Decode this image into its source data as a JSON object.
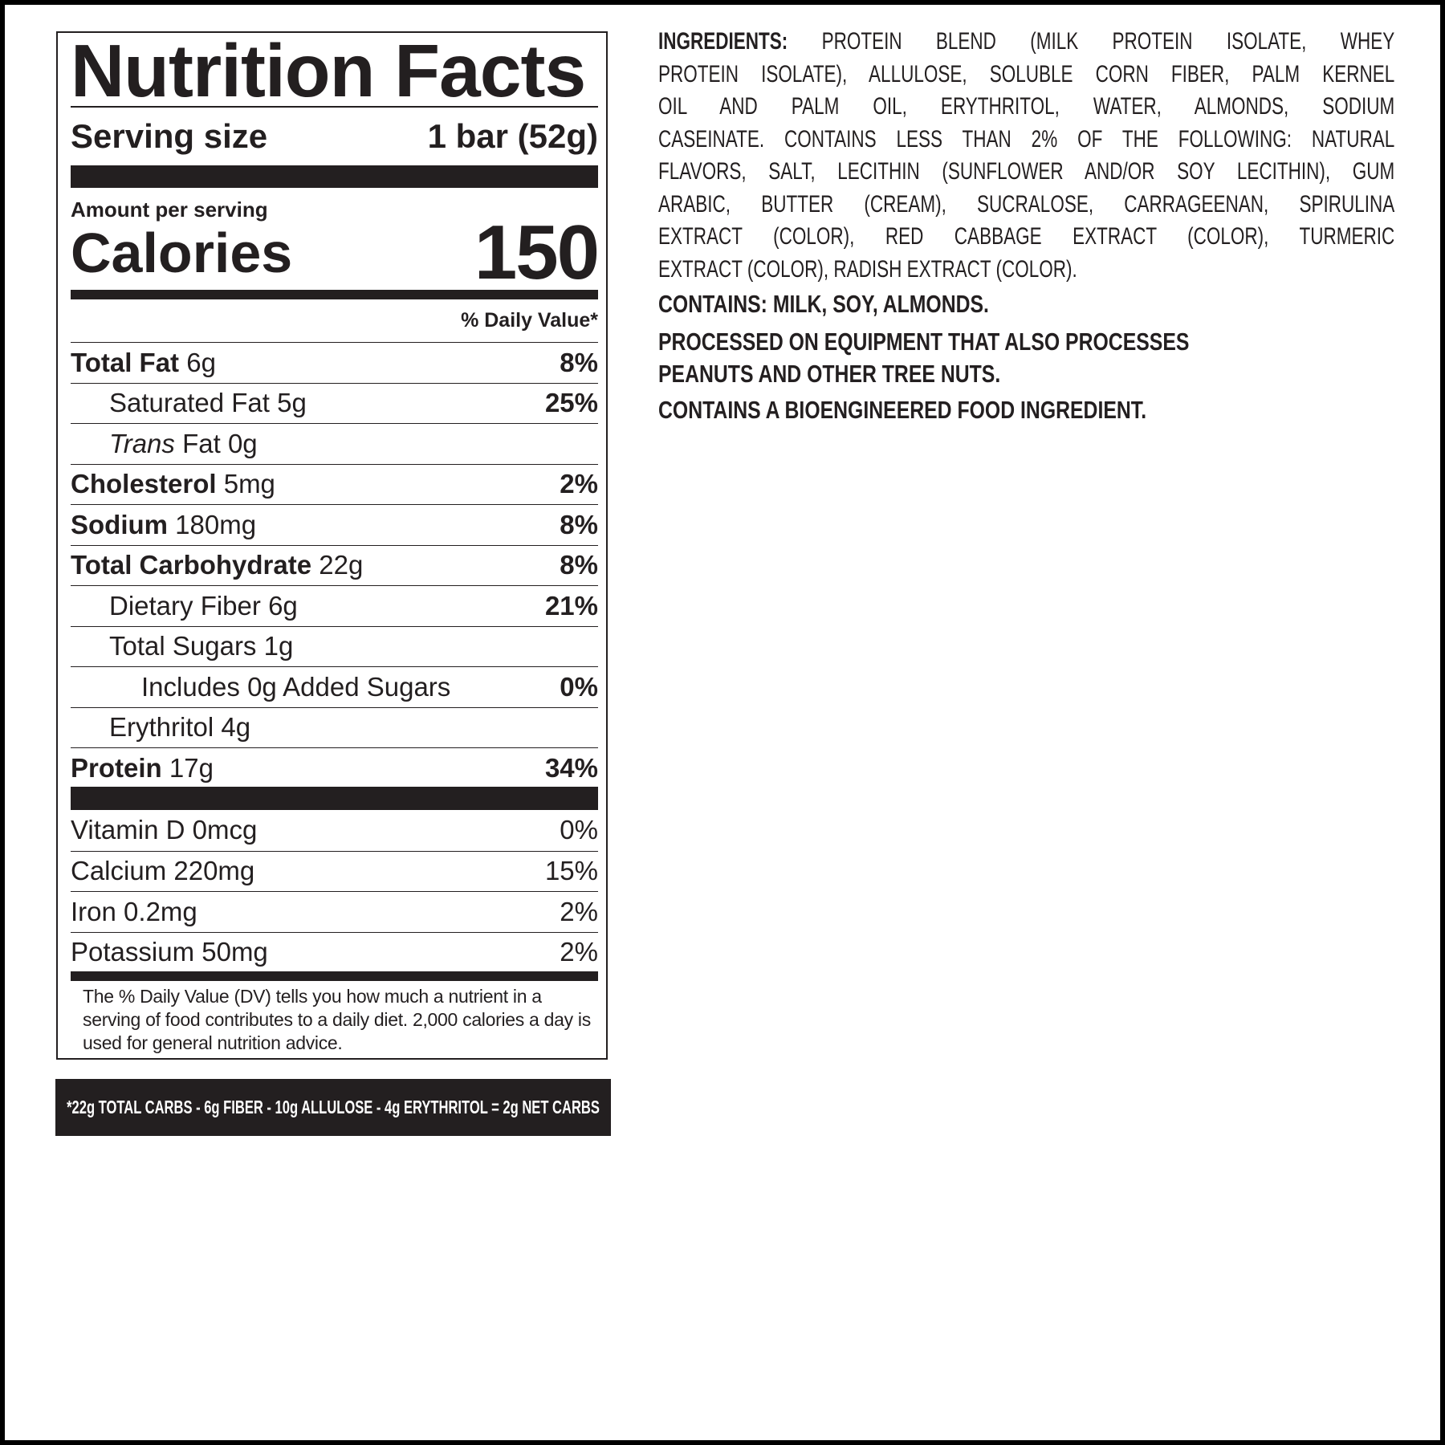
{
  "nutrition_facts": {
    "title": "Nutrition Facts",
    "serving_size_label": "Serving size",
    "serving_size_value": "1 bar (52g)",
    "amount_per_serving": "Amount per serving",
    "calories_label": "Calories",
    "calories_value": "150",
    "daily_value_header": "% Daily Value*",
    "nutrients": [
      {
        "name": "Total Fat",
        "amount": "6g",
        "dv": "8%",
        "bold": true,
        "indent": 0
      },
      {
        "name": "Saturated Fat",
        "amount": "5g",
        "dv": "25%",
        "bold": false,
        "indent": 1
      },
      {
        "name": "Trans",
        "name_suffix": "Fat",
        "amount": "0g",
        "dv": "",
        "bold": false,
        "indent": 1
      },
      {
        "name": "Cholesterol",
        "amount": "5mg",
        "dv": "2%",
        "bold": true,
        "indent": 0
      },
      {
        "name": "Sodium",
        "amount": "180mg",
        "dv": "8%",
        "bold": true,
        "indent": 0
      },
      {
        "name": "Total Carbohydrate",
        "amount": "22g",
        "dv": "8%",
        "bold": true,
        "indent": 0
      },
      {
        "name": "Dietary Fiber",
        "amount": "6g",
        "dv": "21%",
        "bold": false,
        "indent": 1
      },
      {
        "name": "Total Sugars",
        "amount": "1g",
        "dv": "",
        "bold": false,
        "indent": 1
      },
      {
        "name": "Includes 0g Added Sugars",
        "amount": "",
        "dv": "0%",
        "bold": false,
        "indent": 2
      },
      {
        "name": "Erythritol",
        "amount": "4g",
        "dv": "",
        "bold": false,
        "indent": 1
      },
      {
        "name": "Protein",
        "amount": "17g",
        "dv": "34%",
        "bold": true,
        "indent": 0
      }
    ],
    "vitamins": [
      {
        "name": "Vitamin D",
        "amount": "0mcg",
        "dv": "0%"
      },
      {
        "name": "Calcium",
        "amount": "220mg",
        "dv": "15%"
      },
      {
        "name": "Iron",
        "amount": "0.2mg",
        "dv": "2%"
      },
      {
        "name": "Potassium",
        "amount": "50mg",
        "dv": "2%"
      }
    ],
    "footnote": "The % Daily Value (DV) tells you how much a nutrient in a serving of food contributes to a daily diet. 2,000 calories a day is used for general nutrition advice."
  },
  "net_carbs_banner": "*22g TOTAL CARBS - 6g FIBER - 10g ALLULOSE - 4g ERYTHRITOL = 2g NET CARBS",
  "ingredients": {
    "label": "INGREDIENTS:",
    "lines": [
      "PROTEIN BLEND (MILK PROTEIN ISOLATE, WHEY",
      "PROTEIN ISOLATE), ALLULOSE, SOLUBLE CORN FIBER, PALM KERNEL",
      "OIL AND PALM OIL, ERYTHRITOL, WATER, ALMONDS, SODIUM",
      "CASEINATE. CONTAINS LESS THAN 2% OF THE FOLLOWING: NATURAL",
      "FLAVORS, SALT, LECITHIN (SUNFLOWER AND/OR SOY LECITHIN), GUM",
      "ARABIC, BUTTER (CREAM), SUCRALOSE, CARRAGEENAN, SPIRULINA",
      "EXTRACT (COLOR), RED CABBAGE EXTRACT (COLOR), TURMERIC",
      "EXTRACT (COLOR), RADISH EXTRACT (COLOR)."
    ],
    "contains": "CONTAINS: MILK, SOY, ALMONDS.",
    "processed_line1": "PROCESSED ON EQUIPMENT THAT ALSO PROCESSES",
    "processed_line2": "PEANUTS AND OTHER TREE NUTS.",
    "bioengineered": "CONTAINS A BIOENGINEERED FOOD INGREDIENT."
  },
  "colors": {
    "ink": "#231f20",
    "background": "#ffffff"
  }
}
